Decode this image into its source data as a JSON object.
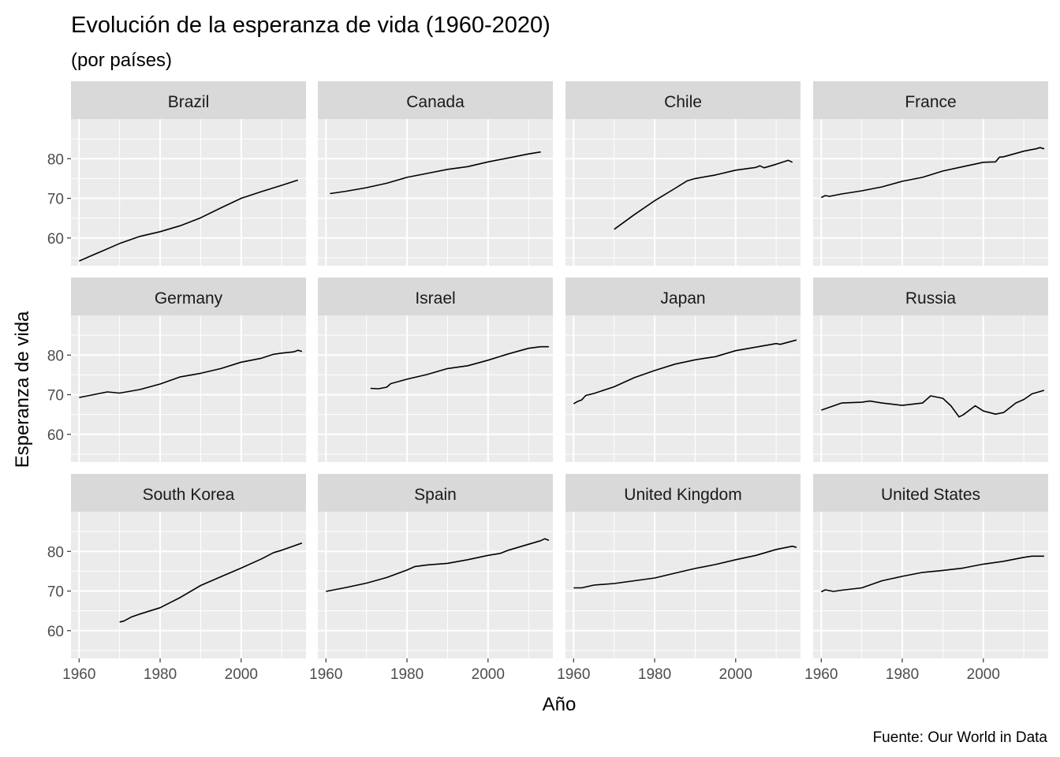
{
  "chart_data": {
    "type": "line",
    "faceted": true,
    "facet_layout": {
      "rows": 3,
      "cols": 4
    },
    "title": "Evolución de la esperanza de vida (1960-2020)",
    "subtitle": "(por países)",
    "xlabel": "Año",
    "ylabel": "Esperanza de vida",
    "caption": "Fuente: Our World in Data",
    "xlim": [
      1958,
      2016
    ],
    "ylim": [
      53,
      90
    ],
    "x_ticks": [
      1960,
      1980,
      2000
    ],
    "y_ticks": [
      60,
      70,
      80
    ],
    "grid": true,
    "line_color": "#000000",
    "panel_background": "#ebebeb",
    "strip_background": "#d9d9d9",
    "facets": [
      {
        "name": "Brazil",
        "points": [
          [
            1960,
            54.2
          ],
          [
            1965,
            56.4
          ],
          [
            1970,
            58.6
          ],
          [
            1975,
            60.4
          ],
          [
            1980,
            61.6
          ],
          [
            1985,
            63.1
          ],
          [
            1990,
            65.1
          ],
          [
            1995,
            67.6
          ],
          [
            2000,
            70.0
          ],
          [
            2005,
            71.7
          ],
          [
            2010,
            73.3
          ],
          [
            2014,
            74.6
          ]
        ]
      },
      {
        "name": "Canada",
        "points": [
          [
            1961,
            71.2
          ],
          [
            1965,
            71.8
          ],
          [
            1970,
            72.7
          ],
          [
            1975,
            73.8
          ],
          [
            1980,
            75.3
          ],
          [
            1985,
            76.3
          ],
          [
            1990,
            77.3
          ],
          [
            1995,
            78.0
          ],
          [
            2000,
            79.2
          ],
          [
            2005,
            80.2
          ],
          [
            2010,
            81.2
          ],
          [
            2013,
            81.7
          ]
        ]
      },
      {
        "name": "Chile",
        "points": [
          [
            1970,
            62.2
          ],
          [
            1975,
            65.9
          ],
          [
            1980,
            69.4
          ],
          [
            1985,
            72.5
          ],
          [
            1988,
            74.4
          ],
          [
            1990,
            75.0
          ],
          [
            1995,
            75.9
          ],
          [
            2000,
            77.1
          ],
          [
            2005,
            77.8
          ],
          [
            2006,
            78.2
          ],
          [
            2007,
            77.7
          ],
          [
            2010,
            78.6
          ],
          [
            2013,
            79.6
          ],
          [
            2014,
            79.1
          ]
        ]
      },
      {
        "name": "France",
        "points": [
          [
            1960,
            70.2
          ],
          [
            1961,
            70.7
          ],
          [
            1962,
            70.5
          ],
          [
            1965,
            71.1
          ],
          [
            1970,
            71.9
          ],
          [
            1975,
            72.9
          ],
          [
            1980,
            74.3
          ],
          [
            1985,
            75.3
          ],
          [
            1990,
            76.9
          ],
          [
            1995,
            78.0
          ],
          [
            2000,
            79.1
          ],
          [
            2003,
            79.2
          ],
          [
            2004,
            80.4
          ],
          [
            2005,
            80.5
          ],
          [
            2010,
            81.9
          ],
          [
            2012,
            82.3
          ],
          [
            2013,
            82.5
          ],
          [
            2014,
            82.8
          ],
          [
            2015,
            82.5
          ]
        ]
      },
      {
        "name": "Germany",
        "points": [
          [
            1960,
            69.3
          ],
          [
            1965,
            70.3
          ],
          [
            1967,
            70.7
          ],
          [
            1970,
            70.4
          ],
          [
            1975,
            71.3
          ],
          [
            1980,
            72.7
          ],
          [
            1985,
            74.5
          ],
          [
            1990,
            75.4
          ],
          [
            1995,
            76.6
          ],
          [
            2000,
            78.2
          ],
          [
            2005,
            79.2
          ],
          [
            2008,
            80.2
          ],
          [
            2010,
            80.5
          ],
          [
            2013,
            80.8
          ],
          [
            2014,
            81.2
          ],
          [
            2015,
            80.9
          ]
        ]
      },
      {
        "name": "Israel",
        "points": [
          [
            1971,
            71.6
          ],
          [
            1973,
            71.5
          ],
          [
            1975,
            71.9
          ],
          [
            1976,
            72.8
          ],
          [
            1980,
            73.9
          ],
          [
            1985,
            75.1
          ],
          [
            1990,
            76.6
          ],
          [
            1995,
            77.3
          ],
          [
            2000,
            78.7
          ],
          [
            2005,
            80.3
          ],
          [
            2010,
            81.7
          ],
          [
            2013,
            82.1
          ],
          [
            2015,
            82.1
          ]
        ]
      },
      {
        "name": "Japan",
        "points": [
          [
            1960,
            67.7
          ],
          [
            1961,
            68.3
          ],
          [
            1962,
            68.7
          ],
          [
            1963,
            69.8
          ],
          [
            1965,
            70.3
          ],
          [
            1970,
            72.0
          ],
          [
            1975,
            74.3
          ],
          [
            1980,
            76.1
          ],
          [
            1985,
            77.7
          ],
          [
            1990,
            78.8
          ],
          [
            1995,
            79.6
          ],
          [
            2000,
            81.1
          ],
          [
            2005,
            82.0
          ],
          [
            2010,
            82.9
          ],
          [
            2011,
            82.7
          ],
          [
            2015,
            83.8
          ]
        ]
      },
      {
        "name": "Russia",
        "points": [
          [
            1960,
            66.1
          ],
          [
            1965,
            67.9
          ],
          [
            1970,
            68.1
          ],
          [
            1972,
            68.4
          ],
          [
            1975,
            67.9
          ],
          [
            1980,
            67.3
          ],
          [
            1985,
            67.9
          ],
          [
            1987,
            69.7
          ],
          [
            1990,
            69.1
          ],
          [
            1992,
            67.2
          ],
          [
            1994,
            64.4
          ],
          [
            1995,
            64.9
          ],
          [
            1998,
            67.2
          ],
          [
            2000,
            65.9
          ],
          [
            2003,
            65.1
          ],
          [
            2005,
            65.5
          ],
          [
            2008,
            67.9
          ],
          [
            2010,
            68.8
          ],
          [
            2012,
            70.2
          ],
          [
            2015,
            71.1
          ]
        ]
      },
      {
        "name": "South Korea",
        "points": [
          [
            1970,
            62.2
          ],
          [
            1971,
            62.4
          ],
          [
            1973,
            63.5
          ],
          [
            1975,
            64.2
          ],
          [
            1980,
            65.8
          ],
          [
            1985,
            68.4
          ],
          [
            1990,
            71.4
          ],
          [
            1995,
            73.6
          ],
          [
            2000,
            75.8
          ],
          [
            2005,
            78.1
          ],
          [
            2008,
            79.7
          ],
          [
            2010,
            80.3
          ],
          [
            2015,
            82.1
          ]
        ]
      },
      {
        "name": "Spain",
        "points": [
          [
            1960,
            69.9
          ],
          [
            1965,
            70.9
          ],
          [
            1970,
            72.0
          ],
          [
            1975,
            73.4
          ],
          [
            1980,
            75.3
          ],
          [
            1982,
            76.2
          ],
          [
            1985,
            76.6
          ],
          [
            1990,
            77.0
          ],
          [
            1995,
            77.9
          ],
          [
            2000,
            79.0
          ],
          [
            2003,
            79.5
          ],
          [
            2005,
            80.3
          ],
          [
            2010,
            81.8
          ],
          [
            2013,
            82.7
          ],
          [
            2014,
            83.2
          ],
          [
            2015,
            82.8
          ]
        ]
      },
      {
        "name": "United Kingdom",
        "points": [
          [
            1960,
            70.8
          ],
          [
            1962,
            70.8
          ],
          [
            1965,
            71.5
          ],
          [
            1970,
            71.9
          ],
          [
            1975,
            72.6
          ],
          [
            1980,
            73.3
          ],
          [
            1985,
            74.5
          ],
          [
            1990,
            75.7
          ],
          [
            1995,
            76.7
          ],
          [
            2000,
            77.9
          ],
          [
            2005,
            79.0
          ],
          [
            2010,
            80.5
          ],
          [
            2013,
            81.1
          ],
          [
            2014,
            81.3
          ],
          [
            2015,
            81.0
          ]
        ]
      },
      {
        "name": "United States",
        "points": [
          [
            1960,
            69.8
          ],
          [
            1961,
            70.3
          ],
          [
            1963,
            69.9
          ],
          [
            1965,
            70.2
          ],
          [
            1970,
            70.8
          ],
          [
            1975,
            72.6
          ],
          [
            1980,
            73.7
          ],
          [
            1985,
            74.7
          ],
          [
            1990,
            75.2
          ],
          [
            1995,
            75.8
          ],
          [
            2000,
            76.8
          ],
          [
            2005,
            77.5
          ],
          [
            2010,
            78.5
          ],
          [
            2012,
            78.8
          ],
          [
            2015,
            78.8
          ]
        ]
      }
    ]
  }
}
